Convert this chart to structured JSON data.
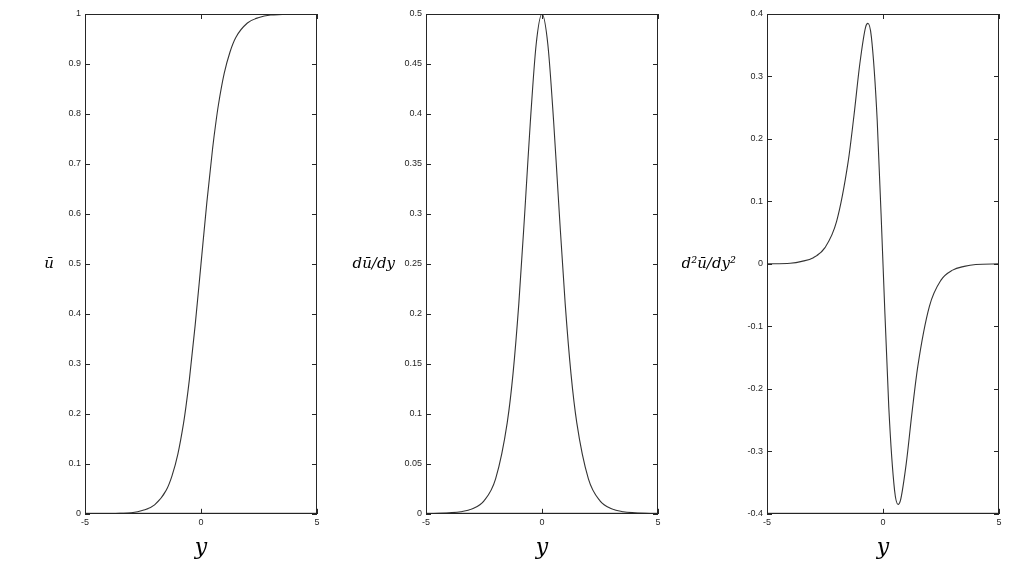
{
  "chart_data": [
    {
      "type": "line",
      "xlabel": "y",
      "ylabel": "ū",
      "x": [
        -5,
        -4,
        -3.5,
        -3,
        -2.5,
        -2,
        -1.5,
        -1.25,
        -1,
        -0.75,
        -0.65,
        -0.5,
        -0.25,
        0,
        0.25,
        0.5,
        0.65,
        0.75,
        1,
        1.25,
        1.5,
        2,
        2.5,
        3,
        3.5,
        4,
        5
      ],
      "series": [
        {
          "color": "#333333",
          "values": [
            0,
            0,
            0.001,
            0.002,
            0.007,
            0.018,
            0.047,
            0.076,
            0.119,
            0.182,
            0.214,
            0.269,
            0.378,
            0.5,
            0.622,
            0.731,
            0.786,
            0.818,
            0.881,
            0.924,
            0.953,
            0.982,
            0.993,
            0.998,
            0.999,
            1,
            1
          ]
        }
      ],
      "xlim": [
        -5,
        5
      ],
      "xticks": [
        -5,
        0,
        5
      ],
      "ylim": [
        0,
        1
      ],
      "yticks": [
        0,
        0.1,
        0.2,
        0.3,
        0.4,
        0.5,
        0.6,
        0.7,
        0.8,
        0.9,
        1
      ],
      "grid": false,
      "legend": false,
      "marker": "none",
      "line_style": "solid"
    },
    {
      "type": "line",
      "xlabel": "y",
      "ylabel": "dū/dy",
      "x": [
        -5,
        -4,
        -3.5,
        -3,
        -2.5,
        -2,
        -1.5,
        -1.25,
        -1,
        -0.75,
        -0.65,
        -0.5,
        -0.25,
        0,
        0.25,
        0.5,
        0.65,
        0.75,
        1,
        1.25,
        1.5,
        2,
        2.5,
        3,
        3.5,
        4,
        5
      ],
      "series": [
        {
          "color": "#333333",
          "values": [
            0,
            0.001,
            0.002,
            0.005,
            0.013,
            0.035,
            0.091,
            0.14,
            0.21,
            0.299,
            0.337,
            0.393,
            0.47,
            0.5,
            0.47,
            0.393,
            0.337,
            0.299,
            0.21,
            0.14,
            0.091,
            0.035,
            0.013,
            0.005,
            0.002,
            0.001,
            0
          ]
        }
      ],
      "xlim": [
        -5,
        5
      ],
      "xticks": [
        -5,
        0,
        5
      ],
      "ylim": [
        0,
        0.5
      ],
      "yticks": [
        0,
        0.05,
        0.1,
        0.15,
        0.2,
        0.25,
        0.3,
        0.35,
        0.4,
        0.45,
        0.5
      ],
      "grid": false,
      "legend": false,
      "marker": "none",
      "line_style": "solid"
    },
    {
      "type": "line",
      "xlabel": "y",
      "ylabel": "d²ū/dy²",
      "x": [
        -5,
        -4,
        -3.5,
        -3,
        -2.5,
        -2,
        -1.5,
        -1.25,
        -1,
        -0.75,
        -0.65,
        -0.5,
        -0.25,
        0,
        0.25,
        0.5,
        0.65,
        0.75,
        1,
        1.25,
        1.5,
        2,
        2.5,
        3,
        3.5,
        4,
        5
      ],
      "series": [
        {
          "color": "#333333",
          "values": [
            0,
            0.001,
            0.004,
            0.01,
            0.026,
            0.068,
            0.164,
            0.238,
            0.32,
            0.379,
            0.385,
            0.363,
            0.23,
            0,
            -0.23,
            -0.363,
            -0.385,
            -0.379,
            -0.32,
            -0.238,
            -0.164,
            -0.068,
            -0.026,
            -0.01,
            -0.004,
            -0.001,
            0
          ]
        }
      ],
      "xlim": [
        -5,
        5
      ],
      "xticks": [
        -5,
        0,
        5
      ],
      "ylim": [
        -0.4,
        0.4
      ],
      "yticks": [
        -0.4,
        -0.3,
        -0.2,
        -0.1,
        0,
        0.1,
        0.2,
        0.3,
        0.4
      ],
      "grid": false,
      "legend": false,
      "marker": "none",
      "line_style": "solid"
    }
  ]
}
